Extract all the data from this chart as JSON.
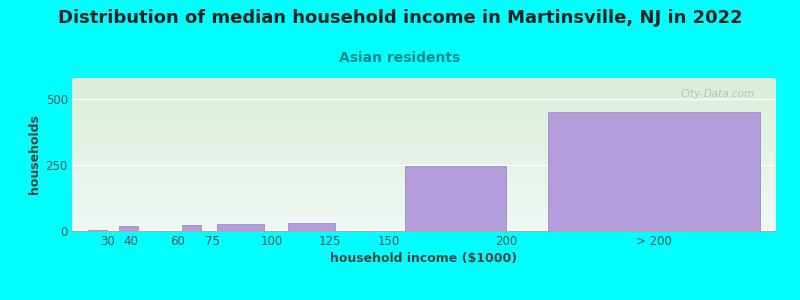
{
  "title": "Distribution of median household income in Martinsville, NJ in 2022",
  "subtitle": "Asian residents",
  "xlabel": "household income ($1000)",
  "ylabel": "households",
  "background_color": "#00FFFF",
  "bar_color": "#b39ddb",
  "bar_edge_color": "#9e8ec0",
  "categories": [
    "30",
    "40",
    "60",
    "75",
    "100",
    "125",
    "150",
    "200",
    "> 200"
  ],
  "values": [
    2,
    20,
    0,
    22,
    25,
    30,
    0,
    248,
    450
  ],
  "bar_lefts": [
    22,
    35,
    52,
    62,
    77,
    107,
    137,
    157,
    218
  ],
  "bar_widths": [
    8,
    8,
    8,
    8,
    20,
    20,
    20,
    43,
    90
  ],
  "xlim": [
    15,
    315
  ],
  "ylim": [
    0,
    580
  ],
  "yticks": [
    0,
    250,
    500
  ],
  "xtick_positions": [
    30,
    40,
    60,
    75,
    100,
    125,
    150,
    200,
    263
  ],
  "xtick_labels": [
    "30",
    "40",
    "60",
    "75",
    "100",
    "125",
    "150",
    "200",
    "> 200"
  ],
  "title_fontsize": 13,
  "subtitle_fontsize": 10,
  "axis_label_fontsize": 9,
  "tick_fontsize": 8.5,
  "watermark": "City-Data.com"
}
